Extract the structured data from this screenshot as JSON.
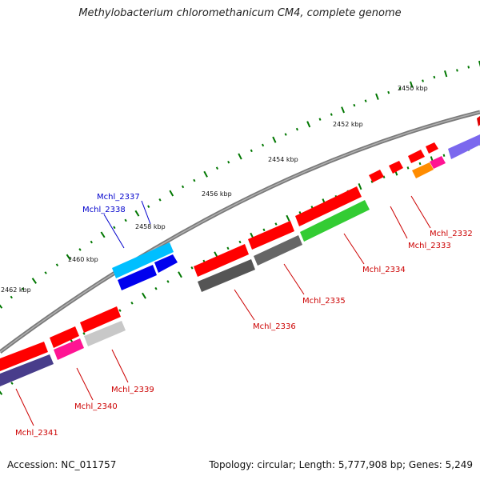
{
  "title": "Methylobacterium chloromethanicum CM4, complete genome",
  "footer": {
    "accession": "Accession: NC_011757",
    "summary": "Topology: circular; Length: 5,777,908 bp; Genes: 5,249"
  },
  "kbp_labels": [
    "2450 kbp",
    "2452 kbp",
    "2454 kbp",
    "2456 kbp",
    "2458 kbp",
    "2460 kbp",
    "2462 kbp"
  ],
  "colors": {
    "red": "#ff0000",
    "blue": "#0000ff",
    "label_red": "#cc0000",
    "label_blue": "#0000cc",
    "tick": "#007700",
    "backbone": "#808080"
  },
  "genes": [
    {
      "label": "Mchl_2332",
      "color": "#cc0000"
    },
    {
      "label": "Mchl_2333",
      "color": "#cc0000"
    },
    {
      "label": "Mchl_2334",
      "color": "#cc0000"
    },
    {
      "label": "Mchl_2335",
      "color": "#cc0000"
    },
    {
      "label": "Mchl_2336",
      "color": "#cc0000"
    },
    {
      "label": "Mchl_2337",
      "color": "#0000cc"
    },
    {
      "label": "Mchl_2338",
      "color": "#0000cc"
    },
    {
      "label": "Mchl_2339",
      "color": "#cc0000"
    },
    {
      "label": "Mchl_2340",
      "color": "#cc0000"
    },
    {
      "label": "Mchl_2341",
      "color": "#cc0000"
    }
  ]
}
